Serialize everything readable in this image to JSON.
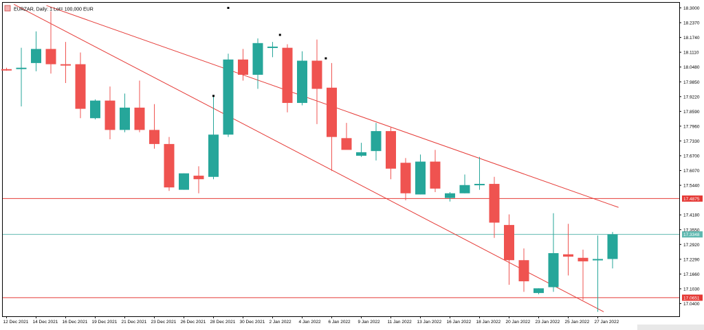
{
  "chart_data": {
    "type": "candlestick",
    "title": "EURZAR, Daily: 1 Lot= 100,000 EUR",
    "ylim": [
      17.0,
      18.31
    ],
    "grid": false,
    "colors": {
      "up": "#26a69a",
      "down": "#ef5350",
      "line": "#e53935",
      "bid_line": "#5fb8b0",
      "frame": "#000000"
    },
    "y_ticks": [
      "18.3000",
      "18.2370",
      "18.1740",
      "18.1110",
      "18.0480",
      "17.9850",
      "17.9220",
      "17.8590",
      "17.7960",
      "17.7330",
      "17.6700",
      "17.6070",
      "17.5440",
      "17.4180",
      "17.3550",
      "17.2920",
      "17.2290",
      "17.1660",
      "17.1030",
      "17.0400"
    ],
    "x_ticks": [
      "12 Dec 2021",
      "14 Dec 2021",
      "16 Dec 2021",
      "19 Dec 2021",
      "21 Dec 2021",
      "23 Dec 2021",
      "26 Dec 2021",
      "28 Dec 2021",
      "30 Dec 2021",
      "2 Jan 2022",
      "4 Jan 2022",
      "6 Jan 2022",
      "9 Jan 2022",
      "11 Jan 2022",
      "13 Jan 2022",
      "16 Jan 2022",
      "18 Jan 2022",
      "20 Jan 2022",
      "23 Jan 2022",
      "25 Jan 2022",
      "27 Jan 2022"
    ],
    "candles": [
      {
        "o": 18.039,
        "h": 18.045,
        "l": 18.032,
        "c": 18.037
      },
      {
        "o": 18.04,
        "h": 18.13,
        "l": 17.88,
        "c": 18.045
      },
      {
        "o": 18.065,
        "h": 18.2,
        "l": 18.03,
        "c": 18.125
      },
      {
        "o": 18.125,
        "h": 18.285,
        "l": 18.02,
        "c": 18.06
      },
      {
        "o": 18.06,
        "h": 18.155,
        "l": 17.98,
        "c": 18.055
      },
      {
        "o": 18.06,
        "h": 18.11,
        "l": 17.83,
        "c": 17.87
      },
      {
        "o": 17.83,
        "h": 17.91,
        "l": 17.825,
        "c": 17.905
      },
      {
        "o": 17.905,
        "h": 17.965,
        "l": 17.74,
        "c": 17.78
      },
      {
        "o": 17.78,
        "h": 17.935,
        "l": 17.77,
        "c": 17.875
      },
      {
        "o": 17.875,
        "h": 17.99,
        "l": 17.77,
        "c": 17.78
      },
      {
        "o": 17.78,
        "h": 17.89,
        "l": 17.7,
        "c": 17.72
      },
      {
        "o": 17.72,
        "h": 17.75,
        "l": 17.52,
        "c": 17.535
      },
      {
        "o": 17.525,
        "h": 17.595,
        "l": 17.525,
        "c": 17.595
      },
      {
        "o": 17.585,
        "h": 17.625,
        "l": 17.51,
        "c": 17.57
      },
      {
        "o": 17.58,
        "h": 17.925,
        "l": 17.57,
        "c": 17.76
      },
      {
        "o": 17.76,
        "h": 18.105,
        "l": 17.75,
        "c": 18.08
      },
      {
        "o": 18.08,
        "h": 18.125,
        "l": 17.99,
        "c": 18.015
      },
      {
        "o": 18.015,
        "h": 18.17,
        "l": 17.955,
        "c": 18.15
      },
      {
        "o": 18.13,
        "h": 18.155,
        "l": 18.09,
        "c": 18.135
      },
      {
        "o": 18.13,
        "h": 18.145,
        "l": 17.855,
        "c": 17.895
      },
      {
        "o": 17.895,
        "h": 18.115,
        "l": 17.885,
        "c": 18.075
      },
      {
        "o": 18.075,
        "h": 18.165,
        "l": 17.805,
        "c": 17.955
      },
      {
        "o": 17.96,
        "h": 18.065,
        "l": 17.605,
        "c": 17.75
      },
      {
        "o": 17.745,
        "h": 17.81,
        "l": 17.7,
        "c": 17.695
      },
      {
        "o": 17.67,
        "h": 17.725,
        "l": 17.665,
        "c": 17.685
      },
      {
        "o": 17.69,
        "h": 17.81,
        "l": 17.65,
        "c": 17.775
      },
      {
        "o": 17.775,
        "h": 17.79,
        "l": 17.57,
        "c": 17.615
      },
      {
        "o": 17.64,
        "h": 17.66,
        "l": 17.48,
        "c": 17.51
      },
      {
        "o": 17.505,
        "h": 17.675,
        "l": 17.505,
        "c": 17.645
      },
      {
        "o": 17.645,
        "h": 17.695,
        "l": 17.515,
        "c": 17.53
      },
      {
        "o": 17.49,
        "h": 17.515,
        "l": 17.475,
        "c": 17.51
      },
      {
        "o": 17.51,
        "h": 17.59,
        "l": 17.51,
        "c": 17.545
      },
      {
        "o": 17.545,
        "h": 17.665,
        "l": 17.525,
        "c": 17.55
      },
      {
        "o": 17.55,
        "h": 17.58,
        "l": 17.32,
        "c": 17.385
      },
      {
        "o": 17.375,
        "h": 17.42,
        "l": 17.12,
        "c": 17.225
      },
      {
        "o": 17.225,
        "h": 17.275,
        "l": 17.09,
        "c": 17.135
      },
      {
        "o": 17.085,
        "h": 17.105,
        "l": 17.08,
        "c": 17.105
      },
      {
        "o": 17.11,
        "h": 17.425,
        "l": 17.09,
        "c": 17.255
      },
      {
        "o": 17.25,
        "h": 17.38,
        "l": 17.16,
        "c": 17.24
      },
      {
        "o": 17.235,
        "h": 17.27,
        "l": 17.055,
        "c": 17.22
      },
      {
        "o": 17.225,
        "h": 17.33,
        "l": 17.005,
        "c": 17.23
      },
      {
        "o": 17.23,
        "h": 17.345,
        "l": 17.19,
        "c": 17.335
      }
    ],
    "horizontal_lines": [
      {
        "value": 17.4875,
        "label": "17.4875",
        "color": "#e53935",
        "style": "solid"
      },
      {
        "value": 17.3348,
        "label": "17.3348",
        "color": "#5fb8b0",
        "style": "solid"
      },
      {
        "value": 17.0651,
        "label": "17.0651",
        "color": "#e53935",
        "style": "solid"
      }
    ],
    "channel_lines": [
      {
        "from": {
          "index": 2.7,
          "value": 18.31
        },
        "to": {
          "index": 41.4,
          "value": 17.45
        },
        "color": "#e53935"
      },
      {
        "from": {
          "index": 0.5,
          "value": 18.315
        },
        "to": {
          "index": 40.4,
          "value": 17.005
        },
        "color": "#e53935"
      }
    ],
    "anchor_points": [
      {
        "index": 15.0,
        "value": 18.3
      },
      {
        "index": 18.5,
        "value": 18.185
      },
      {
        "index": 21.6,
        "value": 18.085
      },
      {
        "index": 14.0,
        "value": 17.925
      }
    ]
  }
}
